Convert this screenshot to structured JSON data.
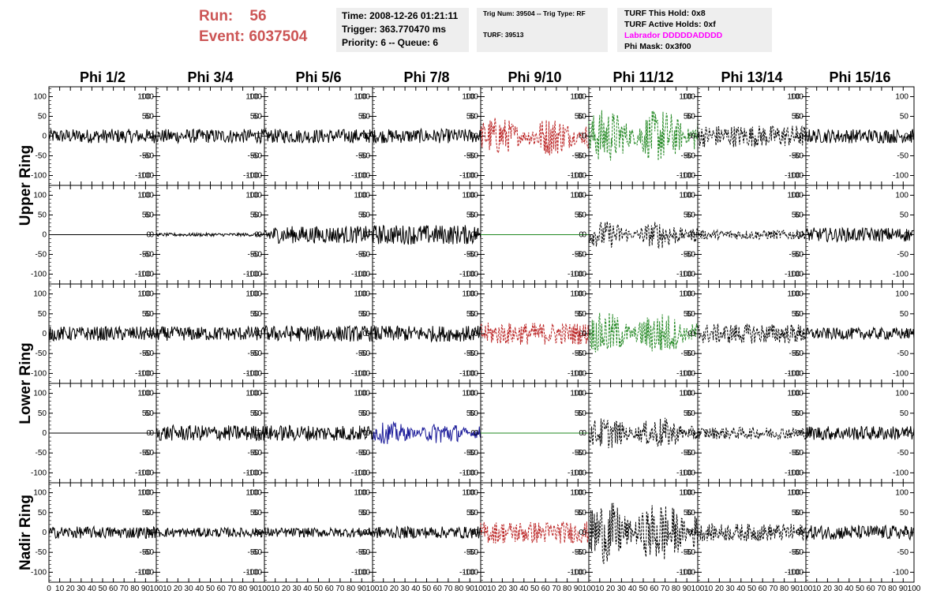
{
  "header": {
    "run_label": "Run:",
    "run_value": "56",
    "event_label": "Event:",
    "event_value": "6037504"
  },
  "time_box": {
    "time": "Time: 2008-12-26 01:21:11",
    "trigger": "Trigger: 363.770470 ms",
    "priority": "Priority: 6 -- Queue: 6"
  },
  "trig_box": {
    "line1": "Trig Num: 39504 -- Trig Type: RF",
    "line2": "TURF: 39513"
  },
  "turf_box": {
    "hold": "TURF This Hold: 0x8",
    "active": "TURF Active Holds: 0xf",
    "labrador": "Labrador DDDDDADDDD",
    "phimask": "Phi Mask: 0x3f00"
  },
  "colors": {
    "run_text": "#cc5555",
    "labrador_text": "#ff00ff",
    "trace_default": "#000000",
    "trace_red": "#bb2222",
    "trace_green": "#228822",
    "trace_blue": "#1a1a99"
  },
  "chart_data": {
    "type": "line",
    "columns": [
      "Phi 1/2",
      "Phi 3/4",
      "Phi 5/6",
      "Phi 7/8",
      "Phi 9/10",
      "Phi 11/12",
      "Phi 13/14",
      "Phi 15/16"
    ],
    "ring_labels": [
      "Upper Ring",
      "Lower Ring",
      "Nadir Ring"
    ],
    "y_ticks": [
      "100",
      "50",
      "0",
      "-50",
      "-100"
    ],
    "x_ticks": [
      "0",
      "10",
      "20",
      "30",
      "40",
      "50",
      "60",
      "70",
      "80",
      "90",
      "100"
    ],
    "xlim": [
      0,
      100
    ],
    "ylim": [
      -125,
      125
    ],
    "rows": [
      {
        "panels": [
          {
            "color": "black",
            "amp": 18,
            "style": "solid"
          },
          {
            "color": "black",
            "amp": 18,
            "style": "solid"
          },
          {
            "color": "black",
            "amp": 18,
            "style": "solid"
          },
          {
            "color": "black",
            "amp": 18,
            "style": "solid"
          },
          {
            "color": "red",
            "amp": 50,
            "style": "dashed",
            "burst": true
          },
          {
            "color": "green",
            "amp": 70,
            "style": "dashed",
            "burst": true
          },
          {
            "color": "black",
            "amp": 28,
            "style": "dashed"
          },
          {
            "color": "black",
            "amp": 18,
            "style": "solid"
          }
        ]
      },
      {
        "panels": [
          {
            "color": "black",
            "amp": 0,
            "style": "solid"
          },
          {
            "color": "black",
            "amp": 4,
            "style": "solid"
          },
          {
            "color": "black",
            "amp": 22,
            "style": "solid"
          },
          {
            "color": "black",
            "amp": 25,
            "style": "solid"
          },
          {
            "color": "green",
            "amp": 0,
            "style": "solid"
          },
          {
            "color": "black",
            "amp": 35,
            "style": "dashed",
            "burst": true
          },
          {
            "color": "black",
            "amp": 12,
            "style": "dashed"
          },
          {
            "color": "black",
            "amp": 18,
            "style": "solid"
          }
        ]
      },
      {
        "panels": [
          {
            "color": "black",
            "amp": 18,
            "style": "solid"
          },
          {
            "color": "black",
            "amp": 18,
            "style": "solid"
          },
          {
            "color": "black",
            "amp": 20,
            "style": "solid"
          },
          {
            "color": "black",
            "amp": 20,
            "style": "solid"
          },
          {
            "color": "red",
            "amp": 28,
            "style": "dashed"
          },
          {
            "color": "green",
            "amp": 55,
            "style": "dashed",
            "burst": true
          },
          {
            "color": "black",
            "amp": 25,
            "style": "dashed"
          },
          {
            "color": "black",
            "amp": 15,
            "style": "solid"
          }
        ]
      },
      {
        "panels": [
          {
            "color": "black",
            "amp": 0,
            "style": "solid"
          },
          {
            "color": "black",
            "amp": 20,
            "style": "solid"
          },
          {
            "color": "black",
            "amp": 20,
            "style": "solid"
          },
          {
            "color": "blue",
            "amp": 28,
            "style": "solid",
            "burst": true
          },
          {
            "color": "green",
            "amp": 0,
            "style": "solid"
          },
          {
            "color": "black",
            "amp": 40,
            "style": "dashed",
            "burst": true
          },
          {
            "color": "black",
            "amp": 15,
            "style": "dashed"
          },
          {
            "color": "black",
            "amp": 18,
            "style": "solid"
          }
        ]
      },
      {
        "panels": [
          {
            "color": "black",
            "amp": 15,
            "style": "solid"
          },
          {
            "color": "black",
            "amp": 12,
            "style": "solid"
          },
          {
            "color": "black",
            "amp": 12,
            "style": "solid"
          },
          {
            "color": "black",
            "amp": 15,
            "style": "solid"
          },
          {
            "color": "red",
            "amp": 28,
            "style": "dashed"
          },
          {
            "color": "black",
            "amp": 80,
            "style": "dashed",
            "burst": true
          },
          {
            "color": "black",
            "amp": 22,
            "style": "dashed"
          },
          {
            "color": "black",
            "amp": 18,
            "style": "solid"
          }
        ]
      }
    ]
  }
}
